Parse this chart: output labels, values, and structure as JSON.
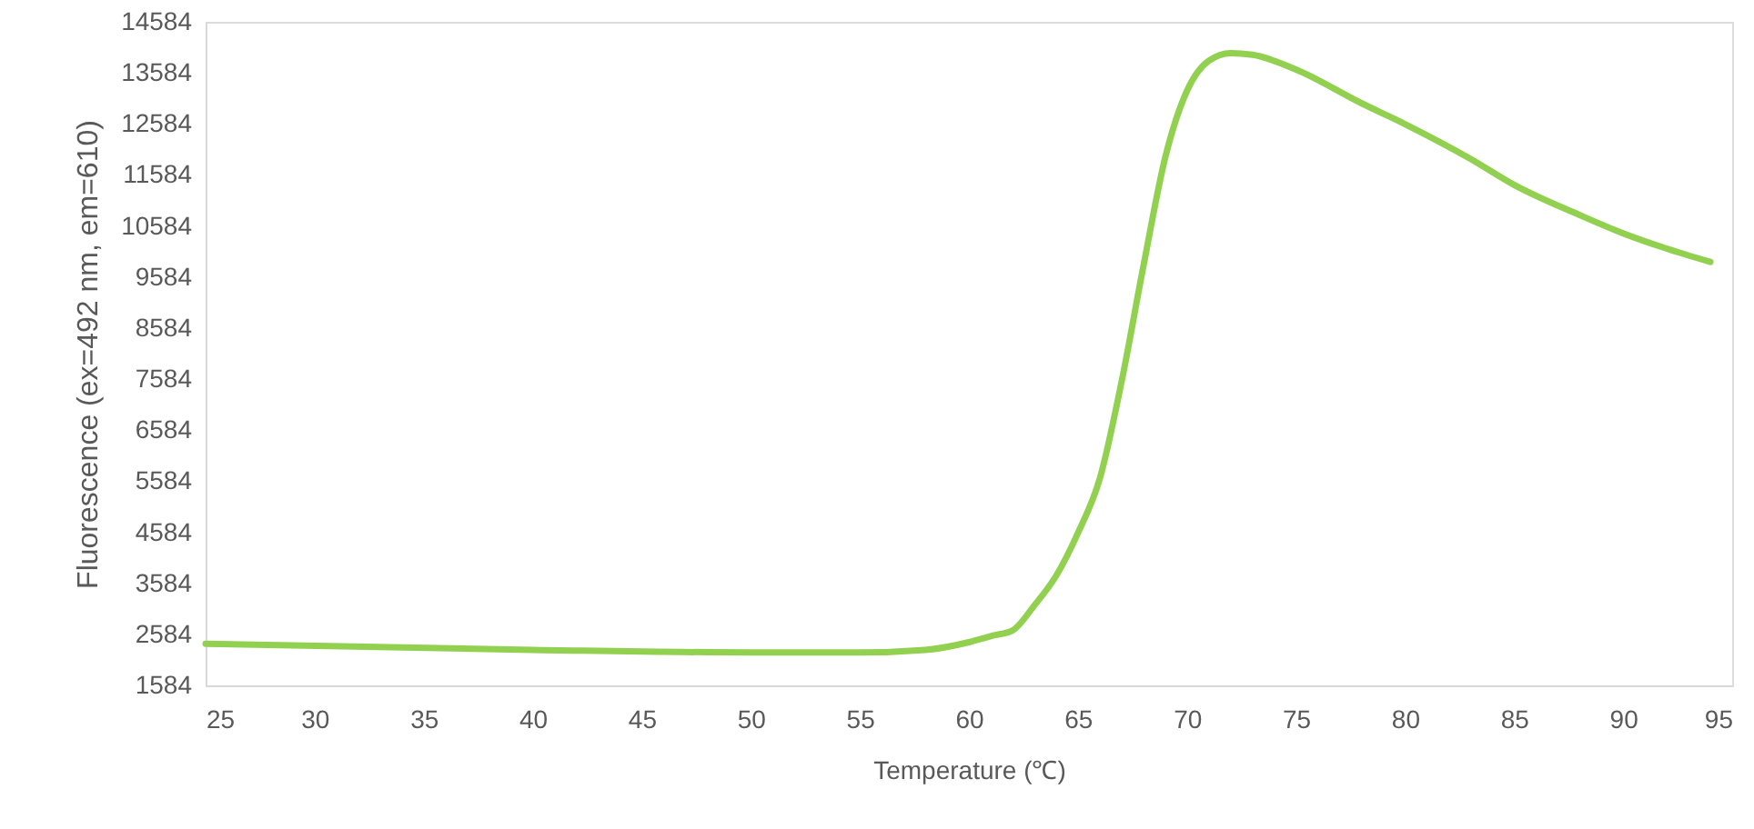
{
  "chart_data": {
    "type": "line",
    "xlabel": "Temperature (℃)",
    "ylabel": "Fluorescence (ex=492 nm, em=610)",
    "x": [
      25,
      40,
      50,
      55,
      58,
      60,
      61,
      62,
      63,
      64,
      65,
      66,
      67,
      68,
      69,
      70,
      71,
      72,
      73,
      75,
      78,
      80,
      83,
      85,
      88,
      90,
      92,
      94
    ],
    "series": [
      {
        "color": "#92d050",
        "values": [
          2400,
          2280,
          2230,
          2230,
          2280,
          2430,
          2550,
          2660,
          3150,
          3730,
          4570,
          5630,
          7530,
          9790,
          11920,
          13230,
          13820,
          13970,
          13940,
          13650,
          12990,
          12580,
          11900,
          11390,
          10800,
          10440,
          10140,
          9880
        ]
      }
    ],
    "xlim": [
      25,
      95
    ],
    "xticks": [
      25,
      30,
      35,
      40,
      45,
      50,
      55,
      60,
      65,
      70,
      75,
      80,
      85,
      90,
      95
    ],
    "ylim": [
      1584,
      14584
    ],
    "yticks": [
      1584,
      2584,
      3584,
      4584,
      5584,
      6584,
      7584,
      8584,
      9584,
      10584,
      11584,
      12584,
      13584,
      14584
    ],
    "grid": false,
    "marker": "none",
    "line_style": "solid"
  }
}
